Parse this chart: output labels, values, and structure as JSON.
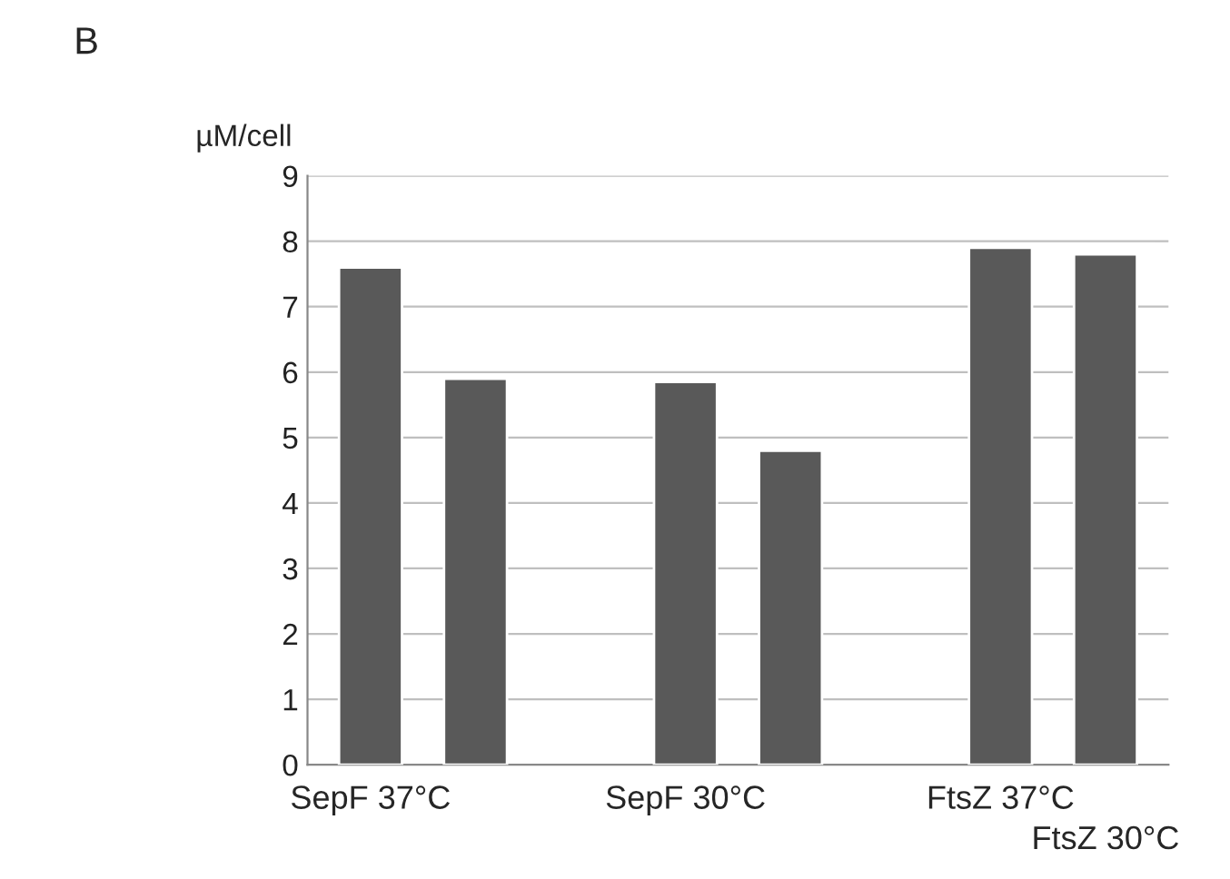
{
  "chart_data": {
    "type": "bar",
    "ylabel": "µM/cell",
    "annotations": [
      "B"
    ],
    "categories": [
      "SepF 37°C",
      null,
      null,
      "SepF 30°C",
      null,
      null,
      "FtsZ 37°C",
      "FtsZ 30°C"
    ],
    "values": [
      7.6,
      5.9,
      null,
      5.85,
      4.8,
      null,
      7.9,
      7.8
    ],
    "color": "#595959",
    "ylim": [
      0,
      9
    ],
    "yticks": [
      0,
      1,
      2,
      3,
      4,
      5,
      6,
      7,
      8,
      9
    ],
    "grid": "y"
  }
}
